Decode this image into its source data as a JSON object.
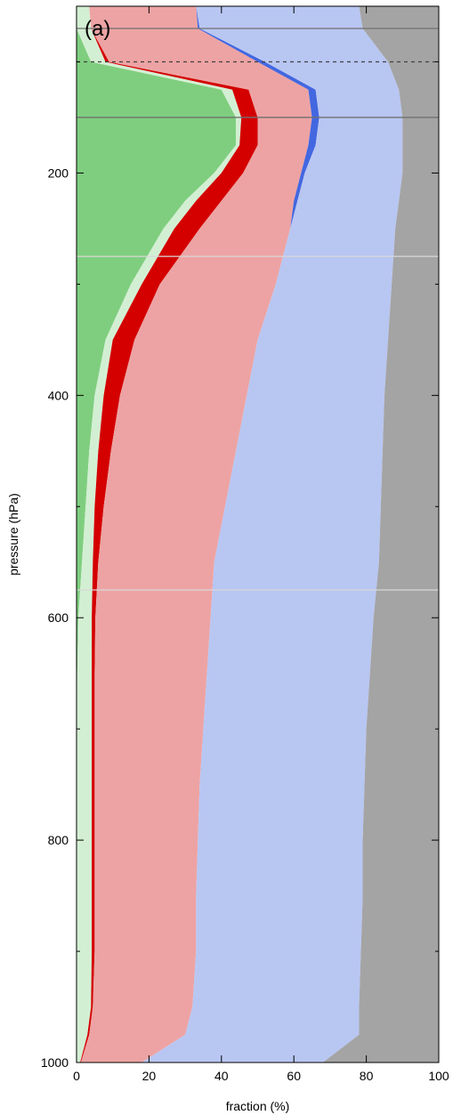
{
  "chart_data": {
    "type": "area",
    "panel_label": "(a)",
    "xlabel": "fraction (%)",
    "ylabel": "pressure (hPa)",
    "xlim": [
      0,
      100
    ],
    "ylim": [
      1000,
      50
    ],
    "y_inverted": true,
    "x_ticks": [
      0,
      20,
      40,
      60,
      80,
      100
    ],
    "y_ticks": [
      200,
      400,
      600,
      800,
      1000
    ],
    "y_minor_ticks": [
      100,
      300,
      500,
      700,
      900
    ],
    "legend": "none",
    "pressure_levels": [
      50,
      70,
      100,
      125,
      150,
      175,
      200,
      225,
      250,
      300,
      350,
      400,
      450,
      500,
      550,
      600,
      650,
      700,
      750,
      800,
      850,
      900,
      950,
      975,
      1000
    ],
    "series": [
      {
        "color": "#7fce7f",
        "upper": [
          0,
          0,
          4,
          40,
          44,
          44,
          38,
          30,
          24,
          15,
          8,
          5,
          3.5,
          2.5,
          1.5,
          0.5,
          0.2,
          0,
          0,
          0,
          0,
          0,
          0,
          0,
          0
        ]
      },
      {
        "color": "#d3efd3",
        "upper": [
          3.5,
          4,
          8,
          43,
          45.5,
          45,
          40,
          33,
          27,
          18,
          10,
          7.5,
          6,
          5,
          4.5,
          4.2,
          4.2,
          4.2,
          4.2,
          4.2,
          4.2,
          4.2,
          4,
          3,
          1
        ]
      },
      {
        "color": "#d40000",
        "upper": [
          3.5,
          4,
          9,
          47.5,
          50,
          50,
          46,
          40,
          34,
          23,
          16,
          12,
          9.5,
          7.5,
          6,
          5.2,
          5,
          5,
          5,
          5,
          5,
          5,
          4.5,
          3.5,
          1.2
        ]
      },
      {
        "color": "#eda3a3",
        "upper": [
          33,
          33.5,
          50,
          64,
          65,
          64,
          62,
          60,
          59,
          55,
          50,
          47,
          44,
          41,
          38,
          37,
          36,
          35,
          34,
          33.5,
          33,
          33,
          32,
          30,
          18
        ]
      },
      {
        "color": "#4267e0",
        "upper": [
          33,
          34,
          52,
          66,
          67,
          66,
          63,
          61,
          59,
          55,
          50,
          47,
          44,
          41,
          38,
          37,
          36,
          35,
          34,
          33.5,
          33,
          33,
          32,
          30,
          18
        ]
      },
      {
        "color": "#b8c6f2",
        "upper": [
          78,
          79,
          86,
          89,
          90,
          90,
          90,
          89,
          88,
          87,
          86,
          85,
          84.5,
          84,
          83.5,
          82,
          81,
          80,
          79.5,
          79,
          79,
          78.5,
          78,
          78,
          68
        ]
      },
      {
        "color": "#a4a4a4",
        "upper": [
          100,
          100,
          100,
          100,
          100,
          100,
          100,
          100,
          100,
          100,
          100,
          100,
          100,
          100,
          100,
          100,
          100,
          100,
          100,
          100,
          100,
          100,
          100,
          100,
          100
        ]
      }
    ],
    "reference_lines": [
      {
        "pressure": 70,
        "style": "solid",
        "color": "#707070"
      },
      {
        "pressure": 100,
        "style": "dashed",
        "color": "#404040"
      },
      {
        "pressure": 150,
        "style": "solid",
        "color": "#707070"
      },
      {
        "pressure": 275,
        "style": "solid",
        "color": "#d8d8d8"
      },
      {
        "pressure": 575,
        "style": "solid",
        "color": "#d8d8d8"
      }
    ]
  }
}
